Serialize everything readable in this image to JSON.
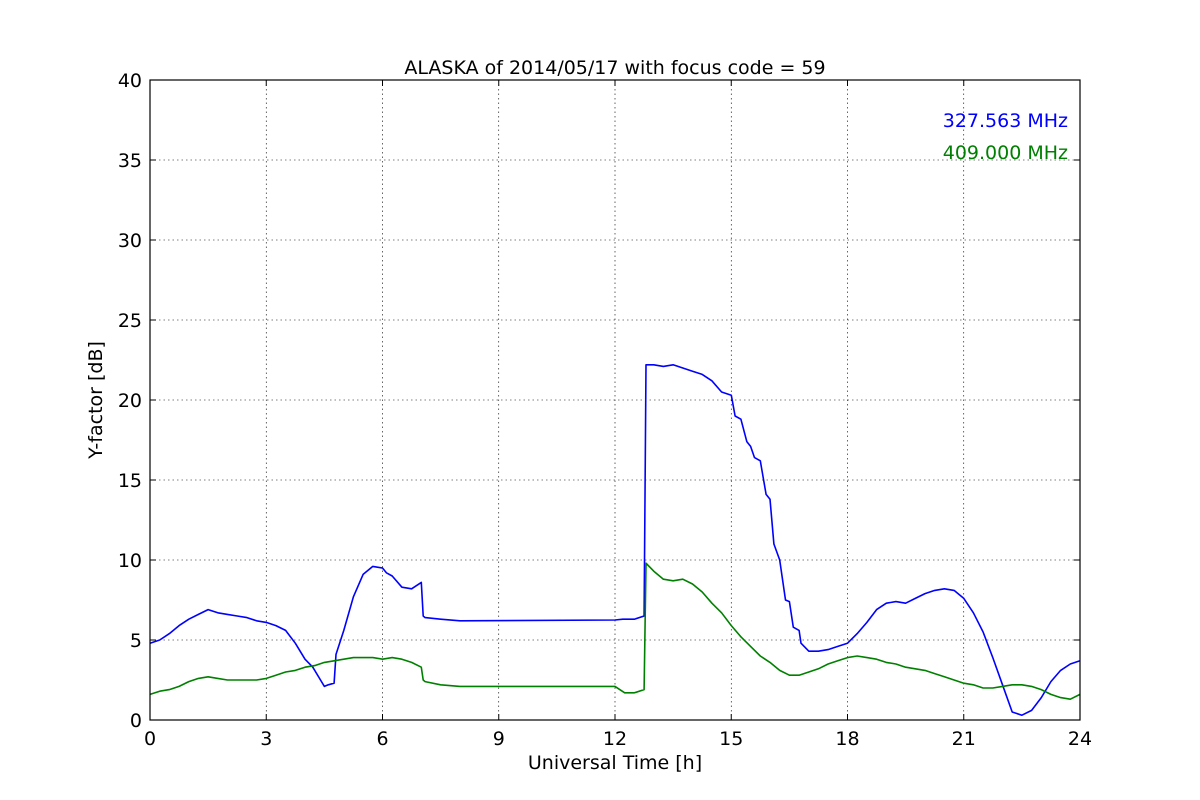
{
  "chart_data": {
    "type": "line",
    "title": "ALASKA of 2014/05/17 with focus code = 59",
    "xlabel": "Universal Time [h]",
    "ylabel": "Y-factor [dB]",
    "xlim": [
      0,
      24
    ],
    "ylim": [
      0,
      40
    ],
    "xticks": [
      0,
      3,
      6,
      9,
      12,
      15,
      18,
      21,
      24
    ],
    "yticks": [
      0,
      5,
      10,
      15,
      20,
      25,
      30,
      35,
      40
    ],
    "grid": true,
    "legend_position": "top-right",
    "series": [
      {
        "name": "327.563 MHz",
        "color": "#0000ff",
        "x": [
          0,
          0.25,
          0.5,
          0.75,
          1.0,
          1.25,
          1.5,
          1.75,
          2.0,
          2.25,
          2.5,
          2.75,
          3.0,
          3.25,
          3.5,
          3.75,
          4.0,
          4.2,
          4.4,
          4.5,
          4.6,
          4.75,
          4.8,
          5.0,
          5.25,
          5.5,
          5.75,
          6.0,
          6.1,
          6.25,
          6.5,
          6.75,
          7.0,
          7.05,
          7.1,
          7.5,
          8.0,
          12.0,
          12.2,
          12.5,
          12.75,
          12.8,
          13.0,
          13.25,
          13.5,
          13.75,
          14.0,
          14.25,
          14.5,
          14.75,
          15.0,
          15.1,
          15.25,
          15.4,
          15.5,
          15.6,
          15.75,
          15.9,
          16.0,
          16.1,
          16.25,
          16.4,
          16.5,
          16.6,
          16.75,
          16.8,
          17.0,
          17.25,
          17.5,
          17.75,
          18.0,
          18.25,
          18.5,
          18.75,
          19.0,
          19.25,
          19.5,
          19.75,
          20.0,
          20.25,
          20.5,
          20.75,
          21.0,
          21.25,
          21.5,
          21.75,
          22.0,
          22.25,
          22.5,
          22.75,
          23.0,
          23.25,
          23.5,
          23.75,
          24.0
        ],
        "y": [
          4.8,
          5.0,
          5.4,
          5.9,
          6.3,
          6.6,
          6.9,
          6.7,
          6.6,
          6.5,
          6.4,
          6.2,
          6.1,
          5.9,
          5.6,
          4.8,
          3.8,
          3.3,
          2.5,
          2.1,
          2.2,
          2.3,
          4.1,
          5.6,
          7.7,
          9.1,
          9.6,
          9.5,
          9.2,
          9.0,
          8.3,
          8.2,
          8.6,
          6.5,
          6.4,
          6.3,
          6.2,
          6.25,
          6.3,
          6.3,
          6.5,
          22.2,
          22.2,
          22.1,
          22.2,
          22.0,
          21.8,
          21.6,
          21.2,
          20.5,
          20.3,
          19.0,
          18.8,
          17.4,
          17.1,
          16.4,
          16.2,
          14.1,
          13.8,
          11.0,
          10.0,
          7.5,
          7.4,
          5.8,
          5.6,
          4.8,
          4.3,
          4.3,
          4.4,
          4.6,
          4.8,
          5.4,
          6.1,
          6.9,
          7.3,
          7.4,
          7.3,
          7.6,
          7.9,
          8.1,
          8.2,
          8.1,
          7.6,
          6.7,
          5.5,
          3.9,
          2.2,
          0.5,
          0.3,
          0.6,
          1.4,
          2.4,
          3.1,
          3.5,
          3.7
        ]
      },
      {
        "name": "409.000 MHz",
        "color": "#008000",
        "x": [
          0,
          0.25,
          0.5,
          0.75,
          1.0,
          1.25,
          1.5,
          1.75,
          2.0,
          2.25,
          2.5,
          2.75,
          3.0,
          3.25,
          3.5,
          3.75,
          4.0,
          4.25,
          4.5,
          4.75,
          5.0,
          5.25,
          5.5,
          5.75,
          6.0,
          6.25,
          6.5,
          6.75,
          7.0,
          7.05,
          7.1,
          7.5,
          8.0,
          12.0,
          12.25,
          12.5,
          12.75,
          12.8,
          13.0,
          13.25,
          13.5,
          13.75,
          14.0,
          14.25,
          14.5,
          14.75,
          15.0,
          15.25,
          15.5,
          15.75,
          16.0,
          16.25,
          16.5,
          16.75,
          17.0,
          17.25,
          17.5,
          17.75,
          18.0,
          18.25,
          18.5,
          18.75,
          19.0,
          19.25,
          19.5,
          19.75,
          20.0,
          20.25,
          20.5,
          20.75,
          21.0,
          21.25,
          21.5,
          21.75,
          22.0,
          22.25,
          22.5,
          22.75,
          23.0,
          23.25,
          23.5,
          23.75,
          24.0
        ],
        "y": [
          1.6,
          1.8,
          1.9,
          2.1,
          2.4,
          2.6,
          2.7,
          2.6,
          2.5,
          2.5,
          2.5,
          2.5,
          2.6,
          2.8,
          3.0,
          3.1,
          3.3,
          3.4,
          3.6,
          3.7,
          3.8,
          3.9,
          3.9,
          3.9,
          3.8,
          3.9,
          3.8,
          3.6,
          3.3,
          2.5,
          2.4,
          2.2,
          2.1,
          2.1,
          1.7,
          1.7,
          1.9,
          9.8,
          9.3,
          8.8,
          8.7,
          8.8,
          8.5,
          8.0,
          7.3,
          6.7,
          5.9,
          5.2,
          4.6,
          4.0,
          3.6,
          3.1,
          2.8,
          2.8,
          3.0,
          3.2,
          3.5,
          3.7,
          3.9,
          4.0,
          3.9,
          3.8,
          3.6,
          3.5,
          3.3,
          3.2,
          3.1,
          2.9,
          2.7,
          2.5,
          2.3,
          2.2,
          2.0,
          2.0,
          2.1,
          2.2,
          2.2,
          2.1,
          1.9,
          1.6,
          1.4,
          1.3,
          1.6
        ]
      }
    ]
  }
}
